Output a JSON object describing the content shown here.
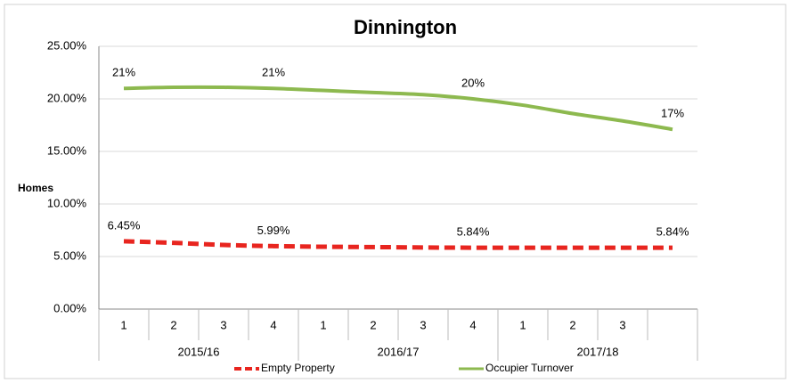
{
  "chart_data": {
    "type": "line",
    "title": "Dinnington",
    "y_label": "Homes",
    "categories": [
      "1",
      "2",
      "3",
      "4",
      "1",
      "2",
      "3",
      "4",
      "1",
      "2",
      "3",
      null
    ],
    "category_groups": [
      "2015/16",
      "2016/17",
      "2017/18"
    ],
    "ylim": [
      0,
      25
    ],
    "yticks": [
      {
        "value": 0,
        "label": "0.00%"
      },
      {
        "value": 5,
        "label": "5.00%"
      },
      {
        "value": 10,
        "label": "10.00%"
      },
      {
        "value": 15,
        "label": "15.00%"
      },
      {
        "value": 20,
        "label": "20.00%"
      },
      {
        "value": 25,
        "label": "25.00%"
      }
    ],
    "grid": true,
    "legend": "bottom",
    "series": [
      {
        "name": "Empty Property",
        "color": "#e8251f",
        "dashed": true,
        "values": [
          6.45,
          6.3,
          6.1,
          5.99,
          5.93,
          5.9,
          5.86,
          5.84,
          5.84,
          5.84,
          5.84,
          5.84
        ],
        "value_labels": [
          "6.45%",
          null,
          null,
          "5.99%",
          null,
          null,
          null,
          "5.84%",
          null,
          null,
          null,
          "5.84%"
        ]
      },
      {
        "name": "Occupier Turnover",
        "color": "#8db94f",
        "dashed": false,
        "values": [
          21.0,
          21.1,
          21.1,
          21.0,
          20.8,
          20.6,
          20.4,
          20.0,
          19.4,
          18.6,
          17.9,
          17.1
        ],
        "value_labels": [
          "21%",
          null,
          null,
          "21%",
          null,
          null,
          null,
          "20%",
          null,
          null,
          null,
          "17%"
        ]
      }
    ]
  }
}
